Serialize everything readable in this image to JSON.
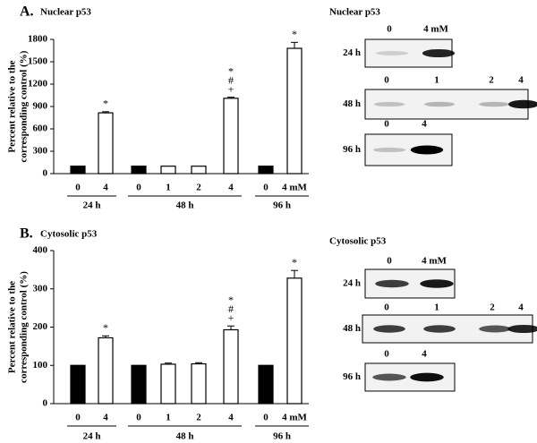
{
  "chart_data": [
    {
      "type": "bar",
      "panel": "A.",
      "title": "Nuclear p53",
      "ylabel": [
        "Percent relative to the",
        "corresponding control (%)"
      ],
      "ylim": [
        0,
        1800
      ],
      "yticks": [
        0,
        300,
        600,
        900,
        1200,
        1500,
        1800
      ],
      "groups": [
        {
          "label": "24 h",
          "categories": [
            "0",
            "4"
          ],
          "values": [
            100,
            815
          ],
          "errors": [
            0,
            15
          ],
          "colors": [
            "#000000",
            "#ffffff"
          ],
          "markers": [
            [],
            [
              "*"
            ]
          ]
        },
        {
          "label": "48 h",
          "categories": [
            "0",
            "1",
            "2",
            "4"
          ],
          "values": [
            100,
            100,
            100,
            1010
          ],
          "errors": [
            0,
            0,
            0,
            15
          ],
          "colors": [
            "#000000",
            "#ffffff",
            "#ffffff",
            "#ffffff"
          ],
          "markers": [
            [],
            [],
            [],
            [
              "*",
              "#",
              "+"
            ]
          ]
        },
        {
          "label": "96 h",
          "categories": [
            "0",
            "4 mM"
          ],
          "values": [
            100,
            1680
          ],
          "errors": [
            0,
            80
          ],
          "colors": [
            "#000000",
            "#ffffff"
          ],
          "markers": [
            [],
            [
              "*"
            ]
          ]
        }
      ]
    },
    {
      "type": "bar",
      "panel": "B.",
      "title": "Cytosolic p53",
      "ylabel": [
        "Percent relative to the",
        "corresponding control (%)"
      ],
      "ylim": [
        0,
        400
      ],
      "yticks": [
        0,
        100,
        200,
        300,
        400
      ],
      "groups": [
        {
          "label": "24 h",
          "categories": [
            "0",
            "4"
          ],
          "values": [
            100,
            172
          ],
          "errors": [
            0,
            5
          ],
          "colors": [
            "#000000",
            "#ffffff"
          ],
          "markers": [
            [],
            [
              "*"
            ]
          ]
        },
        {
          "label": "48 h",
          "categories": [
            "0",
            "1",
            "2",
            "4"
          ],
          "values": [
            100,
            103,
            104,
            193
          ],
          "errors": [
            0,
            3,
            3,
            10
          ],
          "colors": [
            "#000000",
            "#ffffff",
            "#ffffff",
            "#ffffff"
          ],
          "markers": [
            [],
            [],
            [],
            [
              "*",
              "#",
              "+"
            ]
          ]
        },
        {
          "label": "96 h",
          "categories": [
            "0",
            "4 mM"
          ],
          "values": [
            100,
            328
          ],
          "errors": [
            0,
            20
          ],
          "colors": [
            "#000000",
            "#ffffff"
          ],
          "markers": [
            [],
            [
              "*"
            ]
          ]
        }
      ]
    }
  ],
  "blots": [
    {
      "title": "Nuclear p53",
      "rows": [
        {
          "label": "24 h",
          "lanes": [
            "0",
            "4 mM"
          ]
        },
        {
          "label": "48 h",
          "lanes": [
            "0",
            "1",
            "2",
            "4"
          ]
        },
        {
          "label": "96 h",
          "lanes": [
            "0",
            "4"
          ]
        }
      ]
    },
    {
      "title": "Cytosolic p53",
      "rows": [
        {
          "label": "24 h",
          "lanes": [
            "0",
            "4 mM"
          ]
        },
        {
          "label": "48 h",
          "lanes": [
            "0",
            "1",
            "2",
            "4"
          ]
        },
        {
          "label": "96 h",
          "lanes": [
            "0",
            "4"
          ]
        }
      ]
    }
  ]
}
